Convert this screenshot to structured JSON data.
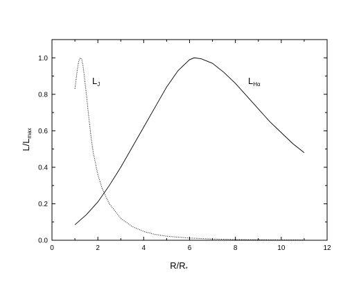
{
  "chart_data": {
    "type": "line",
    "title": "",
    "xlabel": {
      "main": "R/R",
      "sub": "*"
    },
    "ylabel": {
      "main": "L/L",
      "sub": "max"
    },
    "xlim": [
      0,
      12
    ],
    "ylim": [
      0,
      1.1
    ],
    "x_ticks": [
      0,
      2,
      4,
      6,
      8,
      10,
      12
    ],
    "x_tick_labels": [
      "0",
      "2",
      "4",
      "6",
      "8",
      "10",
      "12"
    ],
    "y_ticks": [
      0.0,
      0.2,
      0.4,
      0.6,
      0.8,
      1.0
    ],
    "y_tick_labels": [
      "0.0",
      "0.2",
      "0.4",
      "0.6",
      "0.8",
      "1.0"
    ],
    "grid": false,
    "series": [
      {
        "label": {
          "main": "L",
          "sub": "J"
        },
        "line_style": "dotted",
        "color": "#000000",
        "points": [
          [
            1.0,
            0.83
          ],
          [
            1.05,
            0.88
          ],
          [
            1.1,
            0.93
          ],
          [
            1.15,
            0.97
          ],
          [
            1.2,
            0.995
          ],
          [
            1.25,
            1.0
          ],
          [
            1.3,
            0.99
          ],
          [
            1.35,
            0.96
          ],
          [
            1.4,
            0.91
          ],
          [
            1.5,
            0.8
          ],
          [
            1.6,
            0.68
          ],
          [
            1.7,
            0.57
          ],
          [
            1.8,
            0.48
          ],
          [
            2.0,
            0.36
          ],
          [
            2.2,
            0.28
          ],
          [
            2.5,
            0.2
          ],
          [
            3.0,
            0.12
          ],
          [
            3.5,
            0.075
          ],
          [
            4.0,
            0.048
          ],
          [
            4.5,
            0.032
          ],
          [
            5.0,
            0.022
          ],
          [
            6.0,
            0.012
          ],
          [
            7.0,
            0.007
          ],
          [
            8.0,
            0.004
          ],
          [
            9.0,
            0.003
          ],
          [
            10.0,
            0.002
          ],
          [
            11.0,
            0.002
          ]
        ]
      },
      {
        "label": {
          "main": "L",
          "sub": "Hα"
        },
        "line_style": "solid",
        "color": "#000000",
        "points": [
          [
            1.0,
            0.085
          ],
          [
            1.5,
            0.14
          ],
          [
            2.0,
            0.21
          ],
          [
            2.5,
            0.3
          ],
          [
            3.0,
            0.4
          ],
          [
            3.5,
            0.51
          ],
          [
            4.0,
            0.62
          ],
          [
            4.5,
            0.73
          ],
          [
            5.0,
            0.84
          ],
          [
            5.5,
            0.93
          ],
          [
            6.0,
            0.99
          ],
          [
            6.2,
            1.0
          ],
          [
            6.5,
            0.995
          ],
          [
            7.0,
            0.97
          ],
          [
            7.5,
            0.92
          ],
          [
            8.0,
            0.86
          ],
          [
            8.5,
            0.79
          ],
          [
            9.0,
            0.72
          ],
          [
            9.5,
            0.65
          ],
          [
            10.0,
            0.59
          ],
          [
            10.5,
            0.53
          ],
          [
            11.0,
            0.48
          ]
        ]
      }
    ]
  }
}
